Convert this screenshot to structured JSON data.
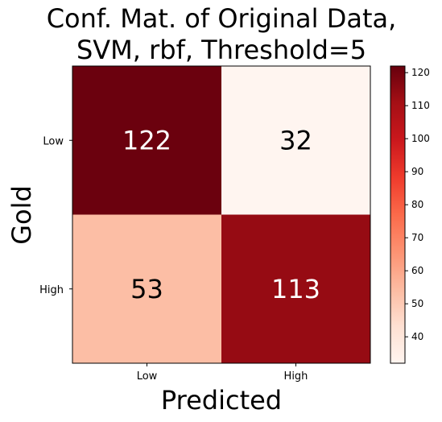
{
  "chart_data": {
    "type": "heatmap",
    "title_lines": [
      "Conf. Mat. of Original Data,",
      "SVM, rbf, Threshold=5"
    ],
    "xlabel": "Predicted",
    "ylabel": "Gold",
    "x_categories": [
      "Low",
      "High"
    ],
    "y_categories": [
      "Low",
      "High"
    ],
    "values": [
      [
        122,
        32
      ],
      [
        53,
        113
      ]
    ],
    "colormap": "Reds",
    "color_range": [
      32,
      122
    ],
    "colorbar_ticks": [
      40,
      50,
      60,
      70,
      80,
      90,
      100,
      110,
      120
    ],
    "cell_colors": [
      [
        "#6b010e",
        "#fff5f0"
      ],
      [
        "#fcbea5",
        "#960b13"
      ]
    ],
    "cell_text_colors": [
      [
        "#ffffff",
        "#000000"
      ],
      [
        "#000000",
        "#ffffff"
      ]
    ]
  }
}
